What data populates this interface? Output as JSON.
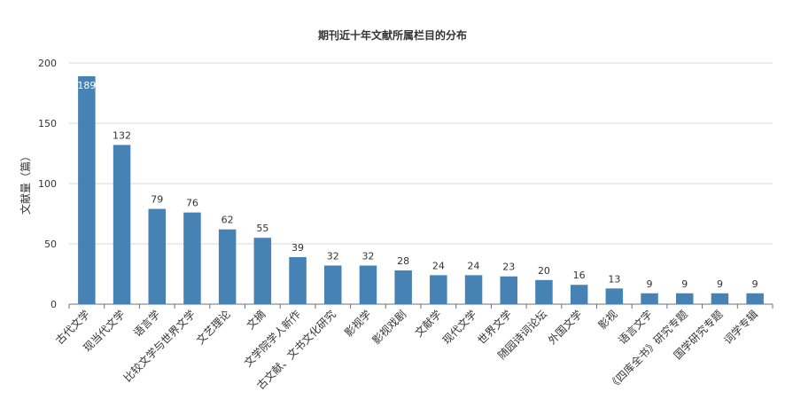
{
  "chart_data": {
    "type": "bar",
    "title": "期刊近十年文献所属栏目的分布",
    "xlabel": "",
    "ylabel": "文献量（篇）",
    "ylim": [
      0,
      200
    ],
    "yticks": [
      0,
      50,
      100,
      150,
      200
    ],
    "grid": true,
    "bar_color": "#4682b4",
    "categories": [
      "古代文学",
      "现当代文学",
      "语言学",
      "比较文学与世界文学",
      "文艺理论",
      "文摘",
      "文学院学人新作",
      "古文献、文书文化研究",
      "影视学",
      "影视戏剧",
      "文献学",
      "现代文学",
      "世界文学",
      "随园诗词论坛",
      "外国文学",
      "影视",
      "语言文字",
      "《四库全书》研究专题",
      "国学研究专题",
      "词学专辑"
    ],
    "values": [
      189,
      132,
      79,
      76,
      62,
      55,
      39,
      32,
      32,
      28,
      24,
      24,
      23,
      20,
      16,
      13,
      9,
      9,
      9,
      9
    ]
  }
}
